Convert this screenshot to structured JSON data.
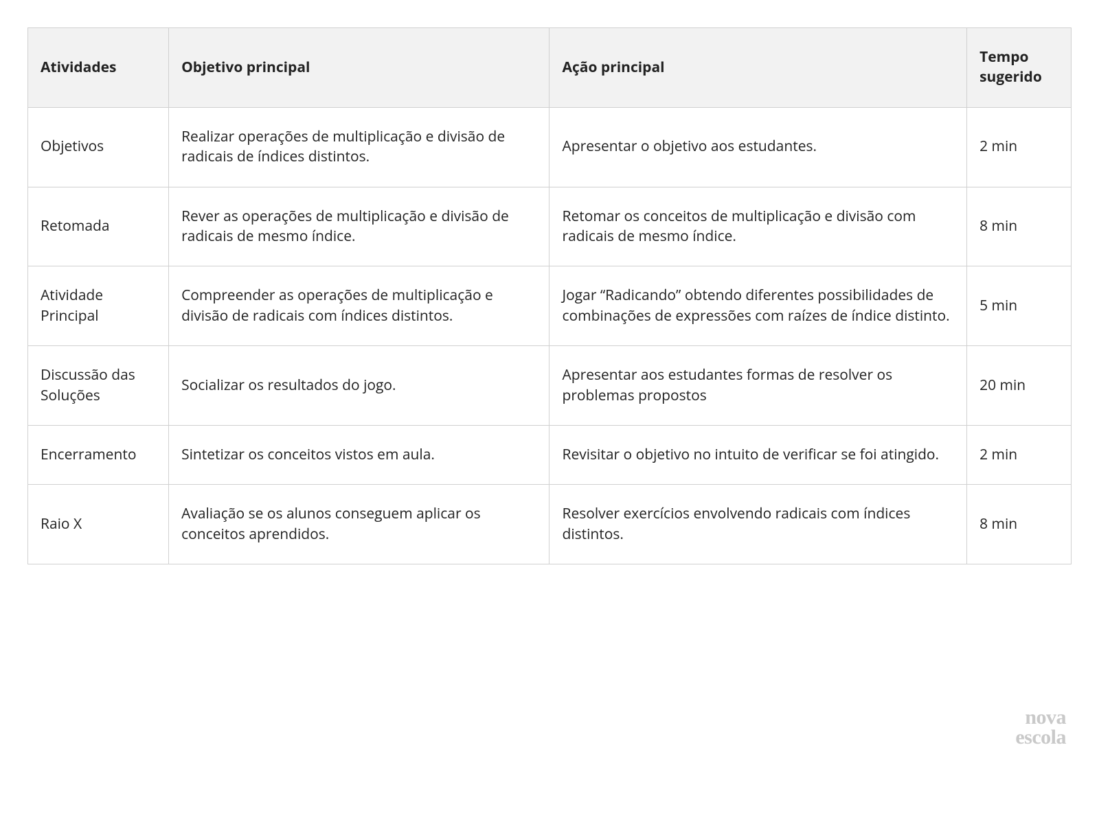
{
  "table": {
    "header_bg": "#f2f2f2",
    "border_color": "#d0d0d0",
    "text_color": "#222222",
    "font_size_pt": 16,
    "columns": [
      {
        "key": "atividades",
        "label": "Atividades",
        "width_pct": 13.5
      },
      {
        "key": "objetivo",
        "label": "Objetivo principal",
        "width_pct": 36.5
      },
      {
        "key": "acao",
        "label": "Ação principal",
        "width_pct": 40
      },
      {
        "key": "tempo",
        "label": "Tempo sugerido",
        "width_pct": 10
      }
    ],
    "rows": [
      {
        "atividades": "Objetivos",
        "objetivo": "Realizar operações de multiplicação e divisão de radicais de índices distintos.",
        "acao": "Apresentar o objetivo aos estudantes.",
        "tempo": "2 min"
      },
      {
        "atividades": "Retomada",
        "objetivo": "Rever as operações de multiplicação e divisão de radicais de mesmo índice.",
        "acao": "Retomar os conceitos de multiplicação e divisão com radicais de mesmo índice.",
        "tempo": "8  min"
      },
      {
        "atividades": "Atividade Principal",
        "objetivo": "Compreender as operações de multiplicação e divisão de radicais com índices distintos.",
        "acao": "Jogar “Radicando” obtendo diferentes possibilidades de combinações de expressões com raízes de índice distinto.",
        "tempo": "5 min"
      },
      {
        "atividades": "Discussão das Soluções",
        "objetivo": "Socializar os resultados do jogo.",
        "acao": "Apresentar aos estudantes formas de resolver os problemas propostos",
        "tempo": "20 min"
      },
      {
        "atividades": "Encerramento",
        "objetivo": "Sintetizar os conceitos vistos em aula.",
        "acao": "Revisitar o objetivo no intuito de verificar se foi atingido.",
        "tempo": "2 min"
      },
      {
        "atividades": "Raio X",
        "objetivo": "Avaliação se os alunos conseguem aplicar os conceitos aprendidos.",
        "acao": "Resolver exercícios envolvendo radicais com índices distintos.",
        "tempo": "8 min"
      }
    ]
  },
  "logo": {
    "line1": "nova",
    "line2": "escola",
    "color": "#c9c9c9",
    "font_family": "serif",
    "font_size_pt": 22
  }
}
